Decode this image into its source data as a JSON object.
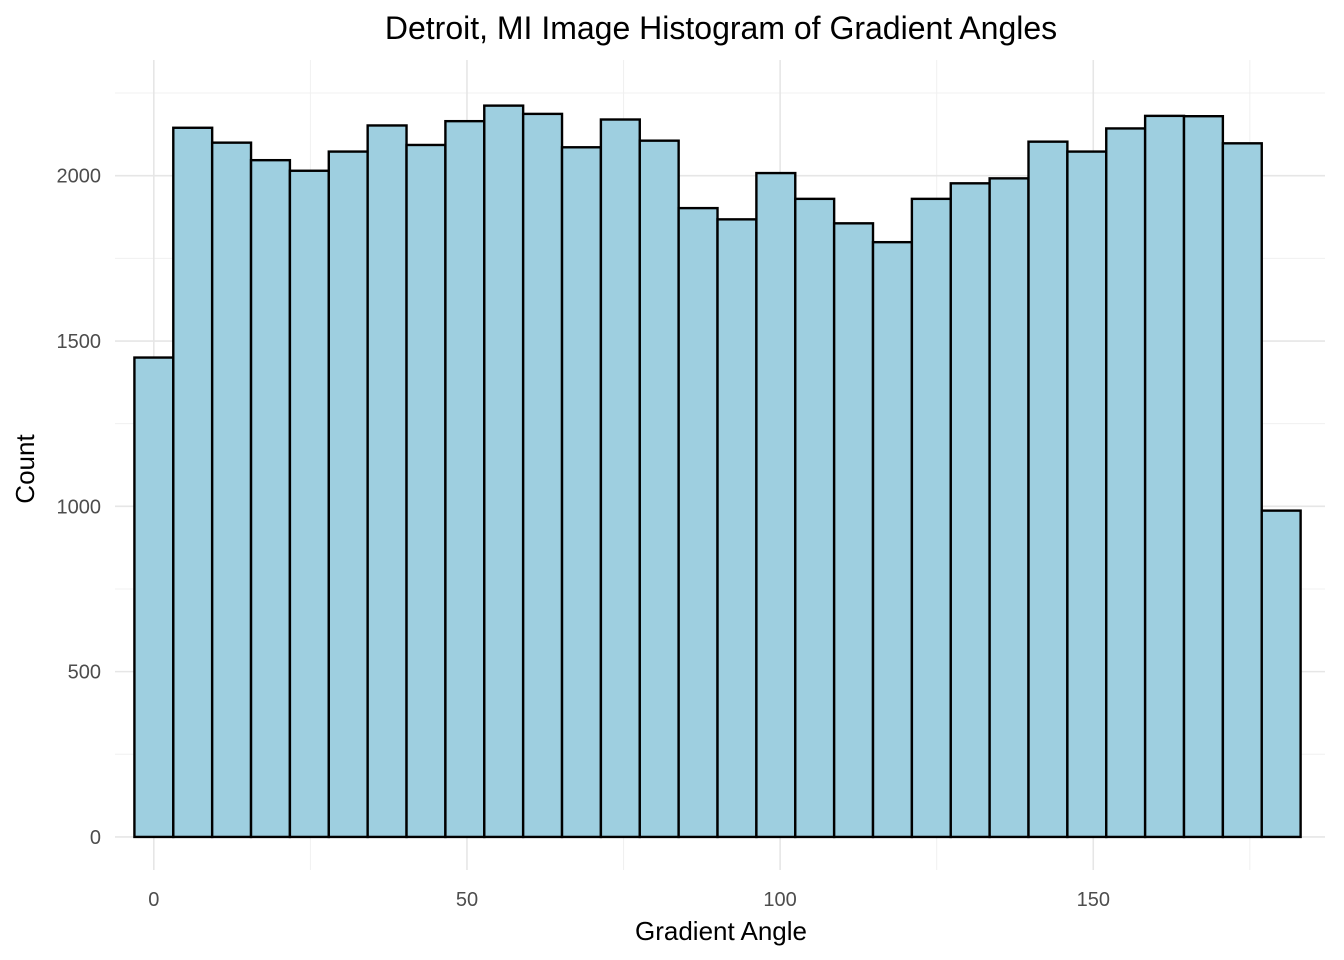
{
  "chart_data": {
    "type": "bar",
    "title": "Detroit, MI Image Histogram of Gradient Angles",
    "xlabel": "Gradient Angle",
    "ylabel": "Count",
    "bin_width": 6.2069,
    "x_bin_start": -3.1,
    "xlim": [
      -6.2,
      187.0
    ],
    "ylim": [
      -100,
      2350
    ],
    "xticks": [
      0,
      50,
      100,
      150
    ],
    "yticks": [
      0,
      500,
      1000,
      1500,
      2000
    ],
    "grid": true,
    "values": [
      1450,
      2145,
      2100,
      2047,
      2015,
      2073,
      2152,
      2093,
      2165,
      2212,
      2187,
      2086,
      2170,
      2106,
      1902,
      1868,
      2008,
      1930,
      1856,
      1799,
      1930,
      1977,
      1992,
      2103,
      2073,
      2143,
      2181,
      2180,
      2098,
      987
    ],
    "colors": {
      "bar_fill": "#9ecfe0",
      "bar_stroke": "#000000",
      "grid": "#e6e6e6"
    }
  }
}
